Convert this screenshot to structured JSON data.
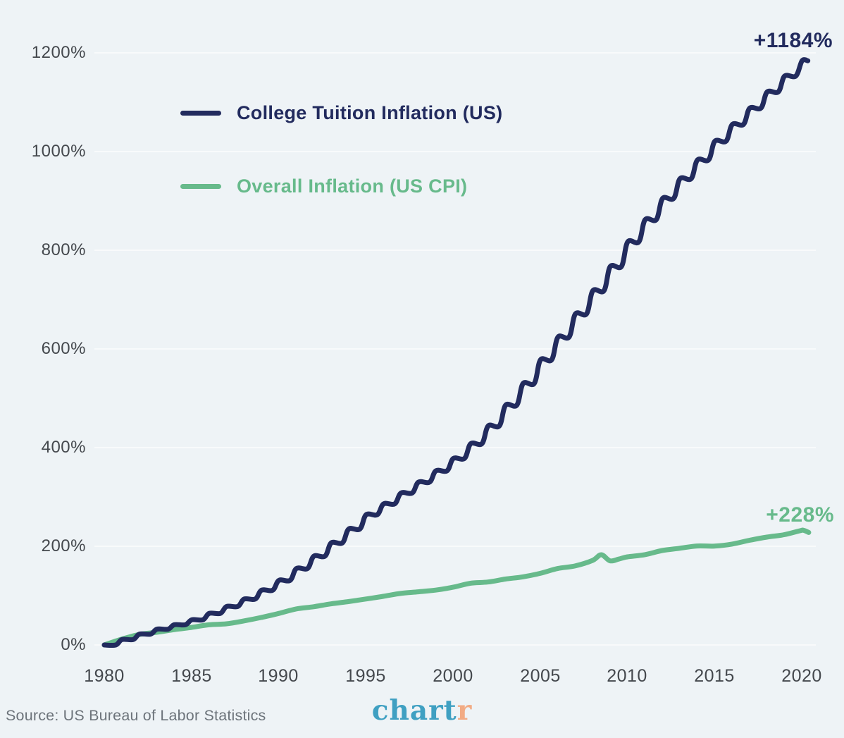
{
  "colors": {
    "background": "#eef3f6",
    "grid": "#f8fafb",
    "axis_label": "#44484d",
    "source_text": "#6d747b"
  },
  "source": {
    "text": "Source: US Bureau of Labor Statistics"
  },
  "logo": {
    "text_primary": "chart",
    "text_accent": "r",
    "primary_color": "#3fa0c2",
    "accent_color": "#f2ab84"
  },
  "chart_data": {
    "type": "line",
    "title": "",
    "xlabel": "",
    "ylabel": "",
    "grid": true,
    "legend_position": "inside-top-left",
    "x_range": [
      1980,
      2020.5
    ],
    "y_range": [
      0,
      1270
    ],
    "x_ticks": [
      "1980",
      "1985",
      "1990",
      "1995",
      "2000",
      "2005",
      "2010",
      "2015",
      "2020"
    ],
    "x_tick_values": [
      1980,
      1985,
      1990,
      1995,
      2000,
      2005,
      2010,
      2015,
      2020
    ],
    "y_ticks": [
      "1200%",
      "1000%",
      "800%",
      "600%",
      "400%",
      "200%",
      "0%"
    ],
    "y_grid_values": [
      1200,
      1000,
      800,
      600,
      400,
      200,
      0
    ],
    "series": [
      {
        "name": "College Tuition Inflation (US)",
        "color": "#222b5e",
        "shape": "yearly-steps",
        "end_label": "+1184%",
        "start_year": 1980,
        "values": [
          0,
          11,
          22,
          32,
          41,
          51,
          64,
          78,
          93,
          111,
          131,
          155,
          180,
          207,
          235,
          264,
          286,
          308,
          330,
          353,
          378,
          408,
          444,
          486,
          530,
          578,
          624,
          671,
          718,
          767,
          817,
          862,
          905,
          945,
          983,
          1021,
          1055,
          1088,
          1121,
          1153,
          1184
        ]
      },
      {
        "name": "Overall Inflation (US CPI)",
        "color": "#67ba8b",
        "shape": "smooth",
        "end_label": "+228%",
        "points": [
          [
            1980,
            0
          ],
          [
            1981,
            11.8
          ],
          [
            1982,
            21.2
          ],
          [
            1983,
            25.7
          ],
          [
            1984,
            31
          ],
          [
            1985,
            35.6
          ],
          [
            1986,
            40.9
          ],
          [
            1987,
            42.9
          ],
          [
            1988,
            48.7
          ],
          [
            1989,
            55.7
          ],
          [
            1990,
            63.8
          ],
          [
            1991,
            73
          ],
          [
            1992,
            77.5
          ],
          [
            1993,
            83.3
          ],
          [
            1994,
            87.9
          ],
          [
            1995,
            93.2
          ],
          [
            1996,
            98.5
          ],
          [
            1997,
            104.5
          ],
          [
            1998,
            107.7
          ],
          [
            1999,
            111.2
          ],
          [
            2000,
            117
          ],
          [
            2001,
            125.1
          ],
          [
            2002,
            127.6
          ],
          [
            2003,
            133.5
          ],
          [
            2004,
            138
          ],
          [
            2005,
            145.1
          ],
          [
            2006,
            154.9
          ],
          [
            2007,
            160.2
          ],
          [
            2008,
            171.3
          ],
          [
            2008.5,
            182.8
          ],
          [
            2009,
            170.5
          ],
          [
            2009.5,
            174
          ],
          [
            2010,
            178.5
          ],
          [
            2011,
            183
          ],
          [
            2012,
            191.4
          ],
          [
            2013,
            196
          ],
          [
            2014,
            200.6
          ],
          [
            2015,
            200.4
          ],
          [
            2016,
            204.5
          ],
          [
            2017,
            212.1
          ],
          [
            2018,
            218.6
          ],
          [
            2019,
            223.5
          ],
          [
            2019.9,
            231.5
          ],
          [
            2020.1,
            232.5
          ],
          [
            2020.4,
            228
          ]
        ]
      }
    ]
  }
}
